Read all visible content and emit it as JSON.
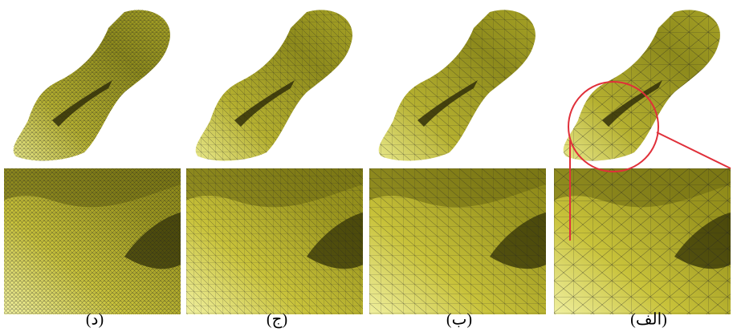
{
  "panels": [
    {
      "label": "(د)"
    },
    {
      "label": "(ج)"
    },
    {
      "label": "(ب)"
    },
    {
      "label": "(الف)"
    }
  ]
}
